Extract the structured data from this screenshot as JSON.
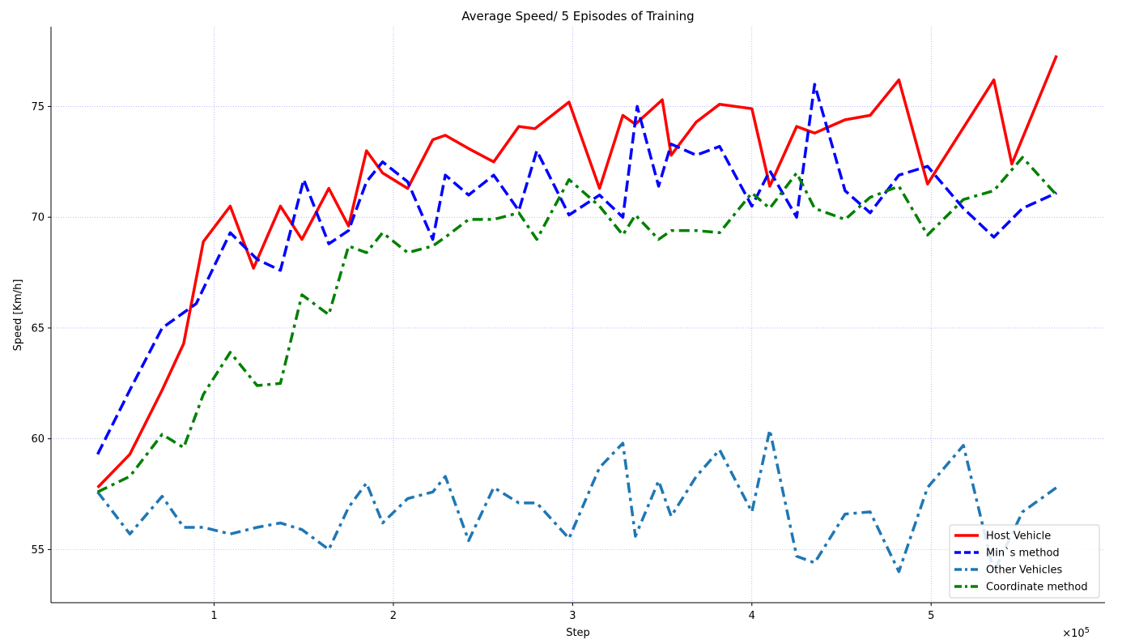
{
  "chart_data": {
    "type": "line",
    "title": "Average Speed/ 5 Episodes of Training",
    "xlabel": "Step",
    "ylabel": "Speed [Km/h]",
    "x_multiplier_label": "×10",
    "x_multiplier_exponent": "5",
    "xlim": [
      0.09,
      5.97
    ],
    "ylim": [
      52.6,
      78.6
    ],
    "xticks": [
      1,
      2,
      3,
      4,
      5
    ],
    "yticks": [
      55,
      60,
      65,
      70,
      75
    ],
    "grid": true,
    "legend_position": "lower-right",
    "series": [
      {
        "name": "Host Vehicle",
        "color": "#ff0000",
        "style": "solid",
        "points": [
          [
            0.35,
            57.8
          ],
          [
            0.53,
            59.3
          ],
          [
            0.71,
            62.2
          ],
          [
            0.83,
            64.3
          ],
          [
            0.94,
            68.9
          ],
          [
            1.09,
            70.5
          ],
          [
            1.22,
            67.7
          ],
          [
            1.37,
            70.5
          ],
          [
            1.49,
            69.0
          ],
          [
            1.64,
            71.3
          ],
          [
            1.75,
            69.6
          ],
          [
            1.85,
            73.0
          ],
          [
            1.94,
            72.0
          ],
          [
            2.08,
            71.3
          ],
          [
            2.22,
            73.5
          ],
          [
            2.29,
            73.7
          ],
          [
            2.42,
            73.1
          ],
          [
            2.56,
            72.5
          ],
          [
            2.7,
            74.1
          ],
          [
            2.79,
            74.0
          ],
          [
            2.98,
            75.2
          ],
          [
            3.15,
            71.3
          ],
          [
            3.28,
            74.6
          ],
          [
            3.35,
            74.2
          ],
          [
            3.5,
            75.3
          ],
          [
            3.55,
            72.8
          ],
          [
            3.69,
            74.3
          ],
          [
            3.82,
            75.1
          ],
          [
            4.0,
            74.9
          ],
          [
            4.1,
            71.4
          ],
          [
            4.25,
            74.1
          ],
          [
            4.35,
            73.8
          ],
          [
            4.52,
            74.4
          ],
          [
            4.66,
            74.6
          ],
          [
            4.82,
            76.2
          ],
          [
            4.98,
            71.5
          ],
          [
            5.35,
            76.2
          ],
          [
            5.45,
            72.4
          ],
          [
            5.7,
            77.3
          ]
        ]
      },
      {
        "name": "Min`s method",
        "color": "#0000ff",
        "style": "dashed",
        "points": [
          [
            0.35,
            59.3
          ],
          [
            0.53,
            62.2
          ],
          [
            0.71,
            65.0
          ],
          [
            0.9,
            66.1
          ],
          [
            1.09,
            69.3
          ],
          [
            1.24,
            68.1
          ],
          [
            1.37,
            67.6
          ],
          [
            1.5,
            71.7
          ],
          [
            1.64,
            68.8
          ],
          [
            1.75,
            69.4
          ],
          [
            1.85,
            71.6
          ],
          [
            1.94,
            72.5
          ],
          [
            2.08,
            71.6
          ],
          [
            2.22,
            69.0
          ],
          [
            2.29,
            71.9
          ],
          [
            2.42,
            71.0
          ],
          [
            2.56,
            71.9
          ],
          [
            2.7,
            70.3
          ],
          [
            2.8,
            73.0
          ],
          [
            2.98,
            70.1
          ],
          [
            3.15,
            71.0
          ],
          [
            3.28,
            70.0
          ],
          [
            3.36,
            75.0
          ],
          [
            3.48,
            71.4
          ],
          [
            3.55,
            73.3
          ],
          [
            3.69,
            72.8
          ],
          [
            3.82,
            73.2
          ],
          [
            4.0,
            70.5
          ],
          [
            4.1,
            72.1
          ],
          [
            4.25,
            70.0
          ],
          [
            4.35,
            76.0
          ],
          [
            4.52,
            71.2
          ],
          [
            4.66,
            70.2
          ],
          [
            4.82,
            71.9
          ],
          [
            4.98,
            72.3
          ],
          [
            5.18,
            70.4
          ],
          [
            5.35,
            69.1
          ],
          [
            5.51,
            70.4
          ],
          [
            5.7,
            71.1
          ]
        ]
      },
      {
        "name": "Other Vehicles",
        "color": "#1f77b4",
        "style": "dashdot",
        "points": [
          [
            0.35,
            57.6
          ],
          [
            0.53,
            55.7
          ],
          [
            0.71,
            57.4
          ],
          [
            0.83,
            56.0
          ],
          [
            0.94,
            56.0
          ],
          [
            1.09,
            55.7
          ],
          [
            1.24,
            56.0
          ],
          [
            1.37,
            56.2
          ],
          [
            1.49,
            55.9
          ],
          [
            1.64,
            55.0
          ],
          [
            1.75,
            56.9
          ],
          [
            1.85,
            58.0
          ],
          [
            1.94,
            56.2
          ],
          [
            2.08,
            57.3
          ],
          [
            2.22,
            57.6
          ],
          [
            2.29,
            58.3
          ],
          [
            2.42,
            55.4
          ],
          [
            2.56,
            57.8
          ],
          [
            2.7,
            57.1
          ],
          [
            2.8,
            57.1
          ],
          [
            2.98,
            55.5
          ],
          [
            3.15,
            58.7
          ],
          [
            3.28,
            59.8
          ],
          [
            3.35,
            55.6
          ],
          [
            3.48,
            58.1
          ],
          [
            3.55,
            56.5
          ],
          [
            3.69,
            58.3
          ],
          [
            3.82,
            59.5
          ],
          [
            4.0,
            56.7
          ],
          [
            4.1,
            60.4
          ],
          [
            4.25,
            54.7
          ],
          [
            4.35,
            54.4
          ],
          [
            4.52,
            56.6
          ],
          [
            4.66,
            56.7
          ],
          [
            4.82,
            54.0
          ],
          [
            4.98,
            57.8
          ],
          [
            5.18,
            59.7
          ],
          [
            5.35,
            54.0
          ],
          [
            5.51,
            56.7
          ],
          [
            5.7,
            57.8
          ]
        ]
      },
      {
        "name": "Coordinate method",
        "color": "#008000",
        "style": "dashdot",
        "points": [
          [
            0.35,
            57.6
          ],
          [
            0.53,
            58.3
          ],
          [
            0.71,
            60.2
          ],
          [
            0.83,
            59.6
          ],
          [
            0.94,
            62.0
          ],
          [
            1.09,
            63.9
          ],
          [
            1.24,
            62.4
          ],
          [
            1.37,
            62.5
          ],
          [
            1.49,
            66.5
          ],
          [
            1.64,
            65.6
          ],
          [
            1.75,
            68.7
          ],
          [
            1.85,
            68.4
          ],
          [
            1.94,
            69.3
          ],
          [
            2.08,
            68.4
          ],
          [
            2.22,
            68.7
          ],
          [
            2.29,
            69.1
          ],
          [
            2.42,
            69.9
          ],
          [
            2.56,
            69.9
          ],
          [
            2.7,
            70.2
          ],
          [
            2.8,
            69.0
          ],
          [
            2.98,
            71.7
          ],
          [
            3.15,
            70.5
          ],
          [
            3.28,
            69.2
          ],
          [
            3.35,
            70.1
          ],
          [
            3.48,
            69.0
          ],
          [
            3.55,
            69.4
          ],
          [
            3.69,
            69.4
          ],
          [
            3.82,
            69.3
          ],
          [
            4.0,
            71.1
          ],
          [
            4.1,
            70.4
          ],
          [
            4.25,
            72.0
          ],
          [
            4.35,
            70.4
          ],
          [
            4.52,
            69.9
          ],
          [
            4.66,
            70.9
          ],
          [
            4.82,
            71.4
          ],
          [
            4.98,
            69.2
          ],
          [
            5.18,
            70.8
          ],
          [
            5.35,
            71.2
          ],
          [
            5.51,
            72.7
          ],
          [
            5.7,
            71.0
          ]
        ]
      }
    ]
  }
}
